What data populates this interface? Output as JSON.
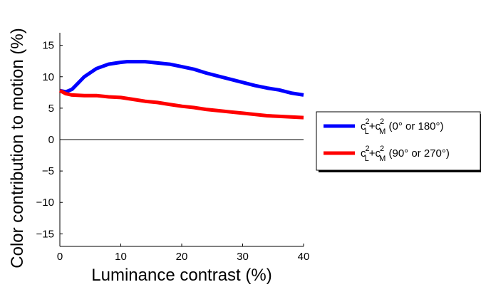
{
  "chart_data": {
    "type": "line",
    "title": "",
    "xlabel": "Luminance contrast (%)",
    "ylabel": "Color contribution to motion (%)",
    "xlim": [
      0,
      40
    ],
    "ylim": [
      -17,
      17
    ],
    "xticks": [
      0,
      10,
      20,
      30,
      40
    ],
    "yticks": [
      -15,
      -10,
      -5,
      0,
      5,
      10,
      15
    ],
    "x_tick_labels": [
      "0",
      "10",
      "20",
      "30",
      "40"
    ],
    "y_tick_labels": [
      "−15",
      "−10",
      "−5",
      "0",
      "5",
      "10",
      "15"
    ],
    "zero_line": true,
    "grid": false,
    "legend_position": "right",
    "series": [
      {
        "name": "c_L^2+c_M^2 (0° or 180°)",
        "name_parts": {
          "base1": "c",
          "sub1": "L",
          "sup1": "2",
          "plus": "+",
          "base2": "c",
          "sub2": "M",
          "sup2": "2",
          "suffix": " (0° or 180°)"
        },
        "color": "#0000ff",
        "x": [
          0,
          1,
          2,
          3,
          4,
          6,
          8,
          10,
          11,
          12,
          14,
          16,
          18,
          20,
          22,
          24,
          26,
          28,
          30,
          32,
          34,
          36,
          38,
          40
        ],
        "y": [
          7.8,
          7.6,
          8.0,
          9.0,
          10.0,
          11.3,
          12.0,
          12.3,
          12.4,
          12.4,
          12.4,
          12.2,
          12.0,
          11.6,
          11.2,
          10.6,
          10.1,
          9.6,
          9.1,
          8.6,
          8.2,
          7.9,
          7.4,
          7.1
        ]
      },
      {
        "name": "c_L^2+c_M^2 (90° or 270°)",
        "name_parts": {
          "base1": "c",
          "sub1": "L",
          "sup1": "2",
          "plus": "+",
          "base2": "c",
          "sub2": "M",
          "sup2": "2",
          "suffix": " (90° or 270°)"
        },
        "color": "#ff0000",
        "x": [
          0,
          1,
          2,
          4,
          6,
          8,
          10,
          12,
          14,
          16,
          18,
          20,
          22,
          24,
          26,
          28,
          30,
          32,
          34,
          36,
          38,
          40
        ],
        "y": [
          7.8,
          7.3,
          7.1,
          7.0,
          7.0,
          6.8,
          6.7,
          6.4,
          6.1,
          5.9,
          5.6,
          5.3,
          5.1,
          4.8,
          4.6,
          4.4,
          4.2,
          4.0,
          3.8,
          3.7,
          3.6,
          3.5
        ]
      }
    ]
  }
}
